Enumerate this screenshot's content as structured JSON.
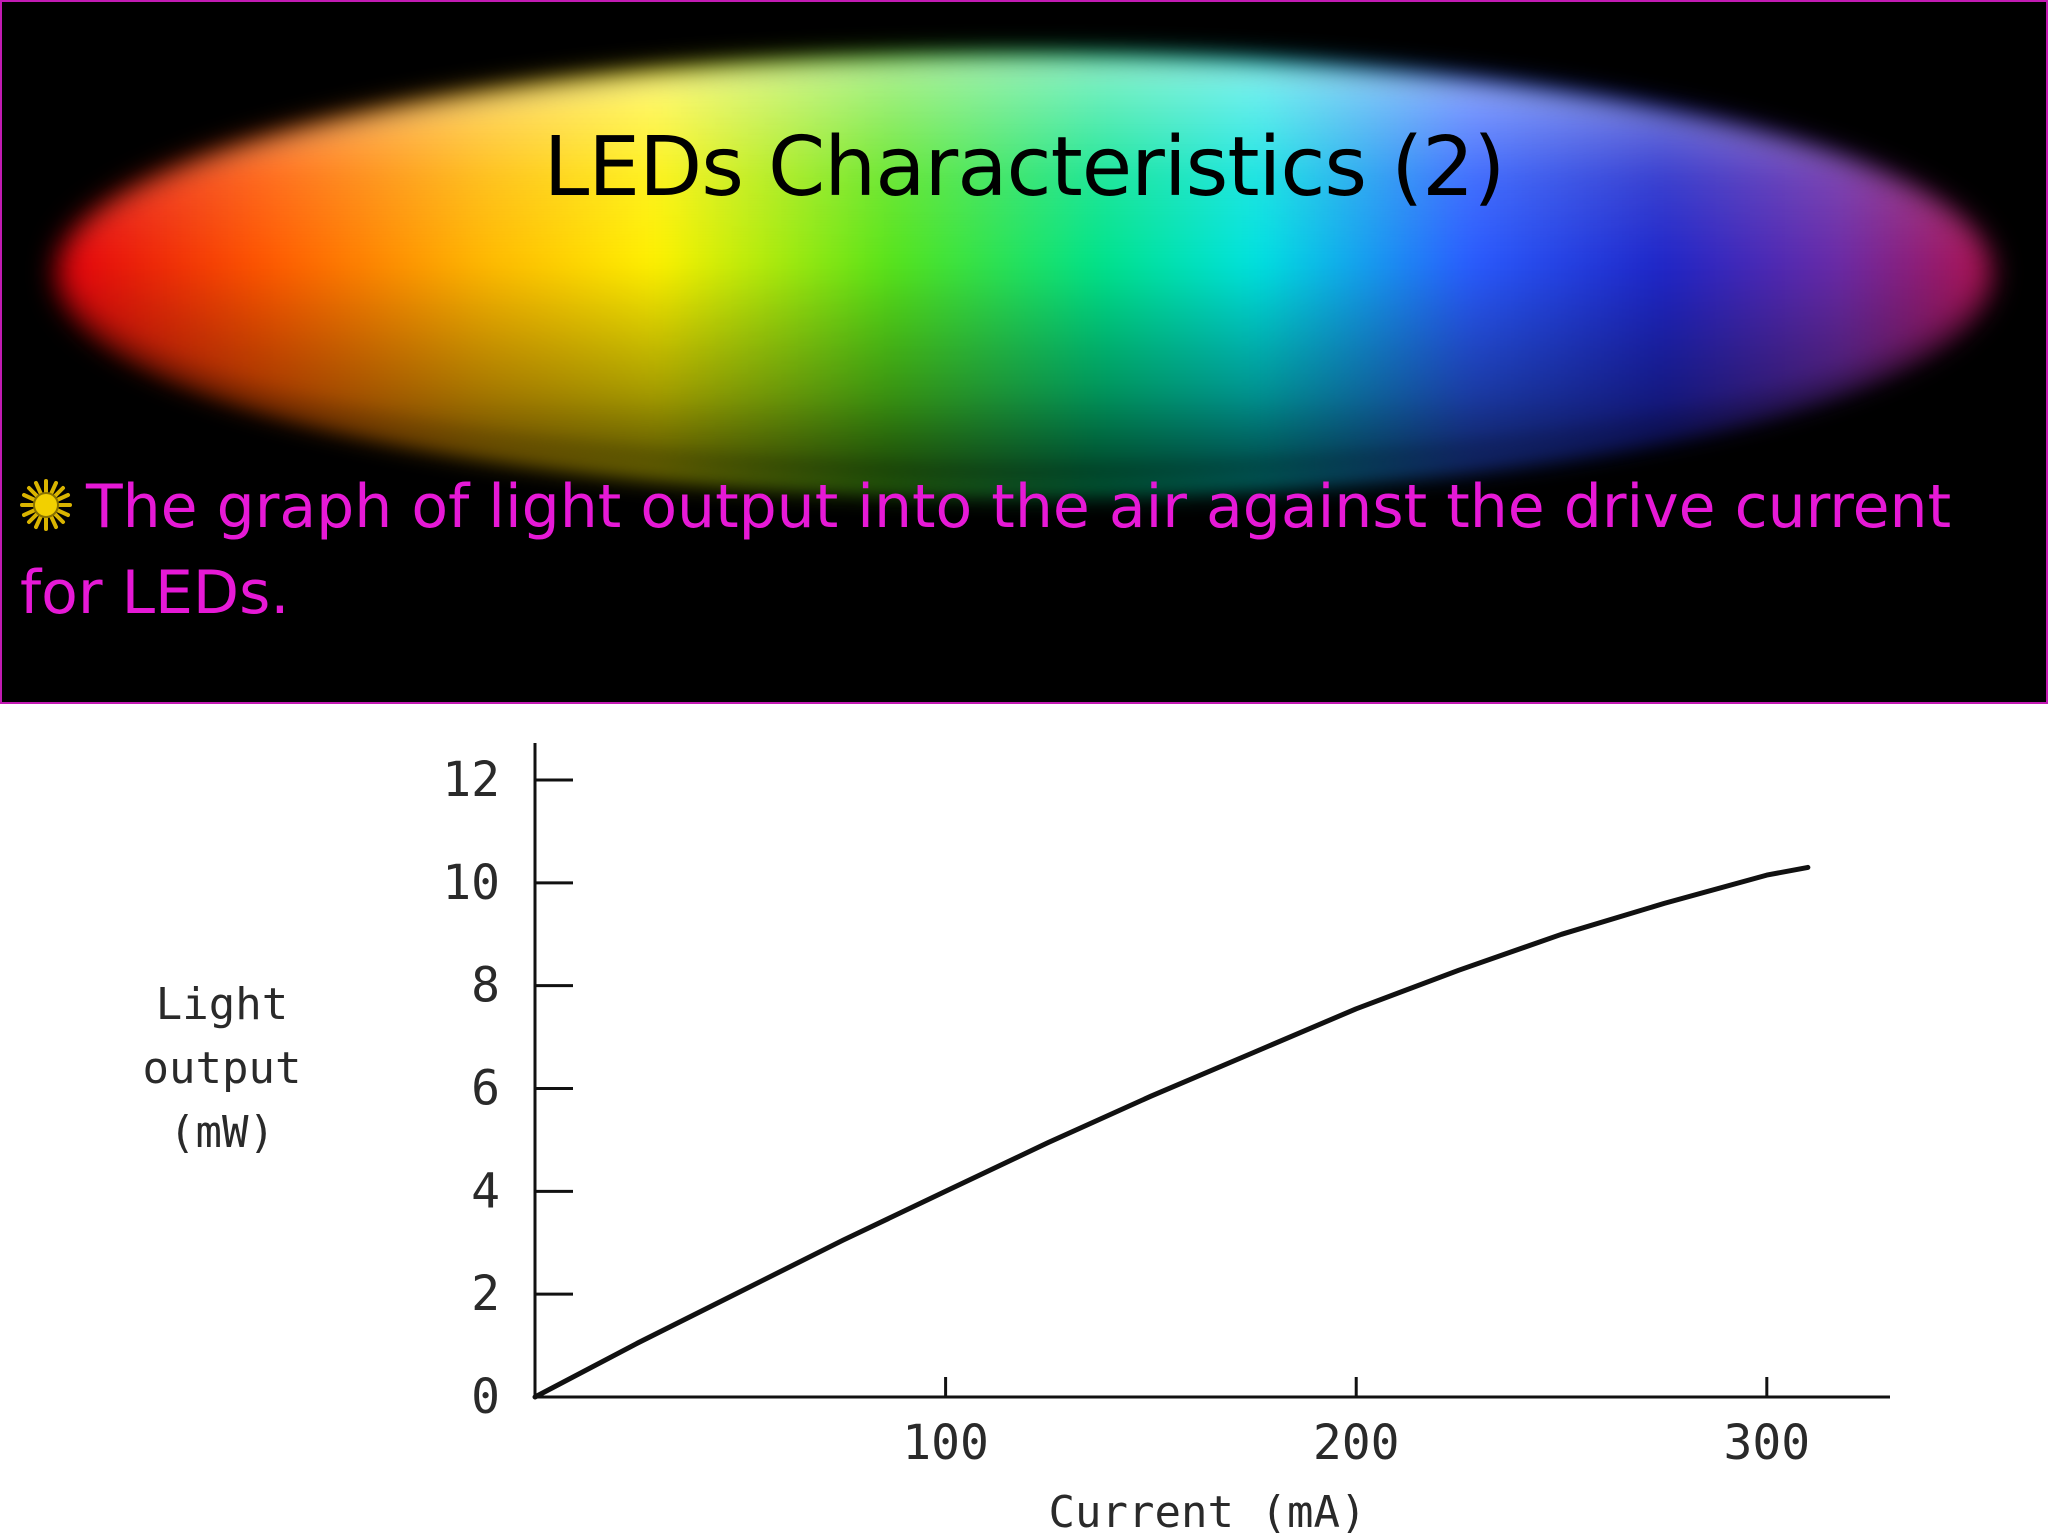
{
  "slide": {
    "title": "LEDs Characteristics (2)",
    "bullet_text": "The graph of light output into the air against the drive current for LEDs.",
    "bullet_icon": "sun-burst-icon"
  },
  "colors": {
    "header_background": "#000000",
    "border": "#c21bb3",
    "bullet_text": "#e619d6",
    "title_text": "#000000",
    "curve": "#111111"
  },
  "chart_data": {
    "type": "line",
    "title": "",
    "xlabel": "Current (mA)",
    "ylabel": [
      "Light",
      "output",
      "(mW)"
    ],
    "xlim": [
      0,
      330
    ],
    "ylim": [
      0,
      12.5
    ],
    "x_ticks": [
      100,
      200,
      300
    ],
    "y_ticks": [
      0,
      2,
      4,
      6,
      8,
      10,
      12
    ],
    "x_tick_labels": [
      "100",
      "200",
      "300"
    ],
    "y_tick_labels": [
      "0",
      "2",
      "4",
      "6",
      "8",
      "10",
      "12"
    ],
    "grid": false,
    "series": [
      {
        "x": [
          0,
          25,
          50,
          75,
          100,
          125,
          150,
          175,
          200,
          225,
          250,
          275,
          300,
          310
        ],
        "y": [
          0,
          1.05,
          2.05,
          3.05,
          4.0,
          4.95,
          5.85,
          6.7,
          7.55,
          8.3,
          9.0,
          9.6,
          10.15,
          10.3
        ]
      }
    ]
  }
}
